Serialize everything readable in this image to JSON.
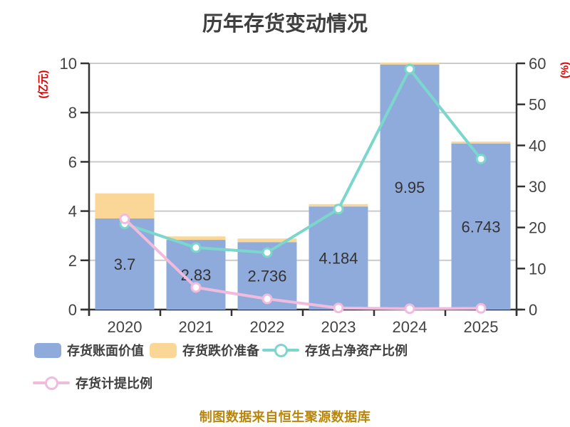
{
  "chart_data": {
    "type": "combo-bar-line",
    "title": "历年存货变动情况",
    "categories": [
      "2020",
      "2021",
      "2022",
      "2023",
      "2024",
      "2025"
    ],
    "left_axis": {
      "unit": "(亿元)",
      "min": 0,
      "max": 10,
      "ticks": [
        0,
        2,
        4,
        6,
        8,
        10
      ],
      "unit_color": "#e00000",
      "tick_color": "#434343"
    },
    "right_axis": {
      "unit": "(%)",
      "min": 0,
      "max": 60,
      "ticks": [
        0,
        10,
        20,
        30,
        40,
        50,
        60
      ],
      "unit_color": "#e00000",
      "tick_color": "#434343"
    },
    "grid": true,
    "grid_color": "#cbcbcb",
    "axis_color": "#333333",
    "legend_position": "bottom",
    "series": [
      {
        "name": "存货账面价值",
        "type": "bar",
        "axis": "left",
        "color": "#8fabdb",
        "values": [
          3.7,
          2.83,
          2.736,
          4.184,
          9.95,
          6.743
        ],
        "data_labels": [
          "3.7",
          "2.83",
          "2.736",
          "4.184",
          "9.95",
          "6.743"
        ]
      },
      {
        "name": "存货跌价准备",
        "type": "bar-stacked-top",
        "axis": "left",
        "color": "#fad796",
        "values": [
          1.02,
          0.14,
          0.15,
          0.1,
          0.1,
          0.08
        ]
      },
      {
        "name": "存货占净资产比例",
        "type": "line",
        "axis": "right",
        "color": "#7bd7cc",
        "marker": "open-circle",
        "values": [
          20.9,
          15.1,
          13.9,
          24.5,
          58.6,
          36.7
        ]
      },
      {
        "name": "存货计提比例",
        "type": "line",
        "axis": "right",
        "color": "#f0bbdd",
        "marker": "open-circle",
        "values": [
          22.1,
          5.4,
          2.6,
          0.4,
          0.2,
          0.3
        ]
      }
    ],
    "caption": "制图数据来自恒生聚源数据库",
    "caption_color": "#b8860b",
    "data_label_color": "#333333",
    "title_color": "#3f3f3f"
  }
}
